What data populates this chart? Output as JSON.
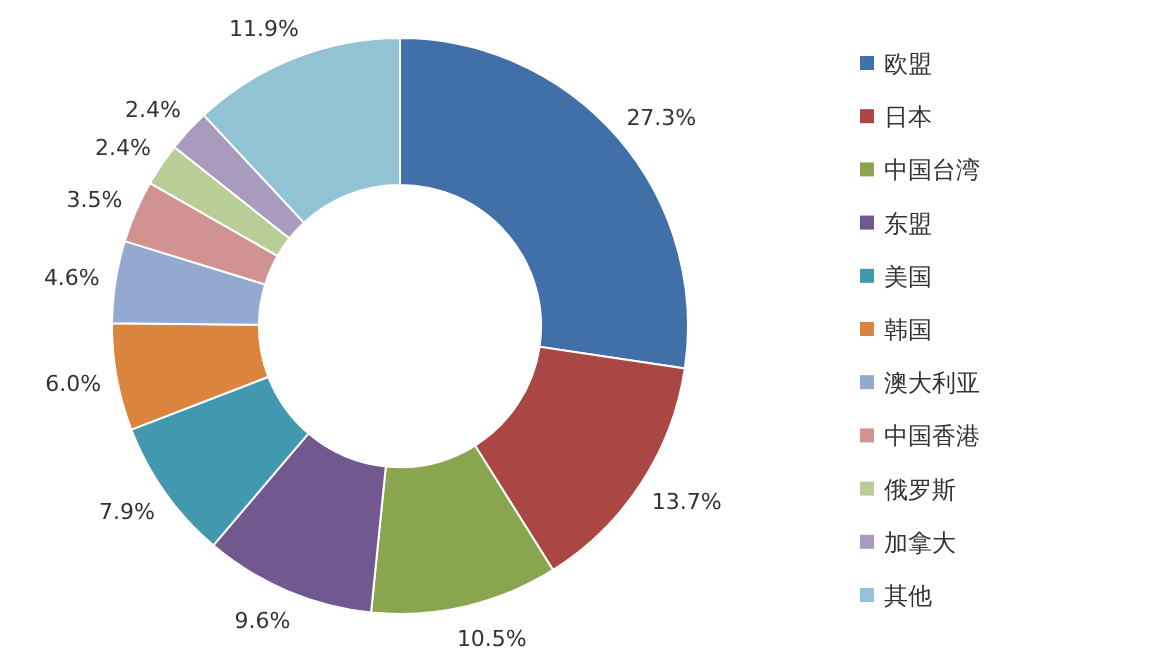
{
  "chart_data": {
    "type": "donut",
    "categories": [
      "欧盟",
      "日本",
      "中国台湾",
      "东盟",
      "美国",
      "韩国",
      "澳大利亚",
      "中国香港",
      "俄罗斯",
      "加拿大",
      "其他"
    ],
    "values": [
      27.3,
      13.7,
      10.5,
      9.6,
      7.9,
      6.0,
      4.6,
      3.5,
      2.4,
      2.4,
      11.9
    ],
    "value_labels": [
      "27.3%",
      "13.7%",
      "10.5%",
      "9.6%",
      "7.9%",
      "6.0%",
      "4.6%",
      "3.5%",
      "2.4%",
      "2.4%",
      "11.9%"
    ],
    "colors": [
      "#4170a8",
      "#aa4643",
      "#89a54e",
      "#71588f",
      "#4198af",
      "#db843d",
      "#93a9cf",
      "#d19392",
      "#b9cd96",
      "#a99bbd",
      "#92c3d5"
    ],
    "legend": "right"
  }
}
